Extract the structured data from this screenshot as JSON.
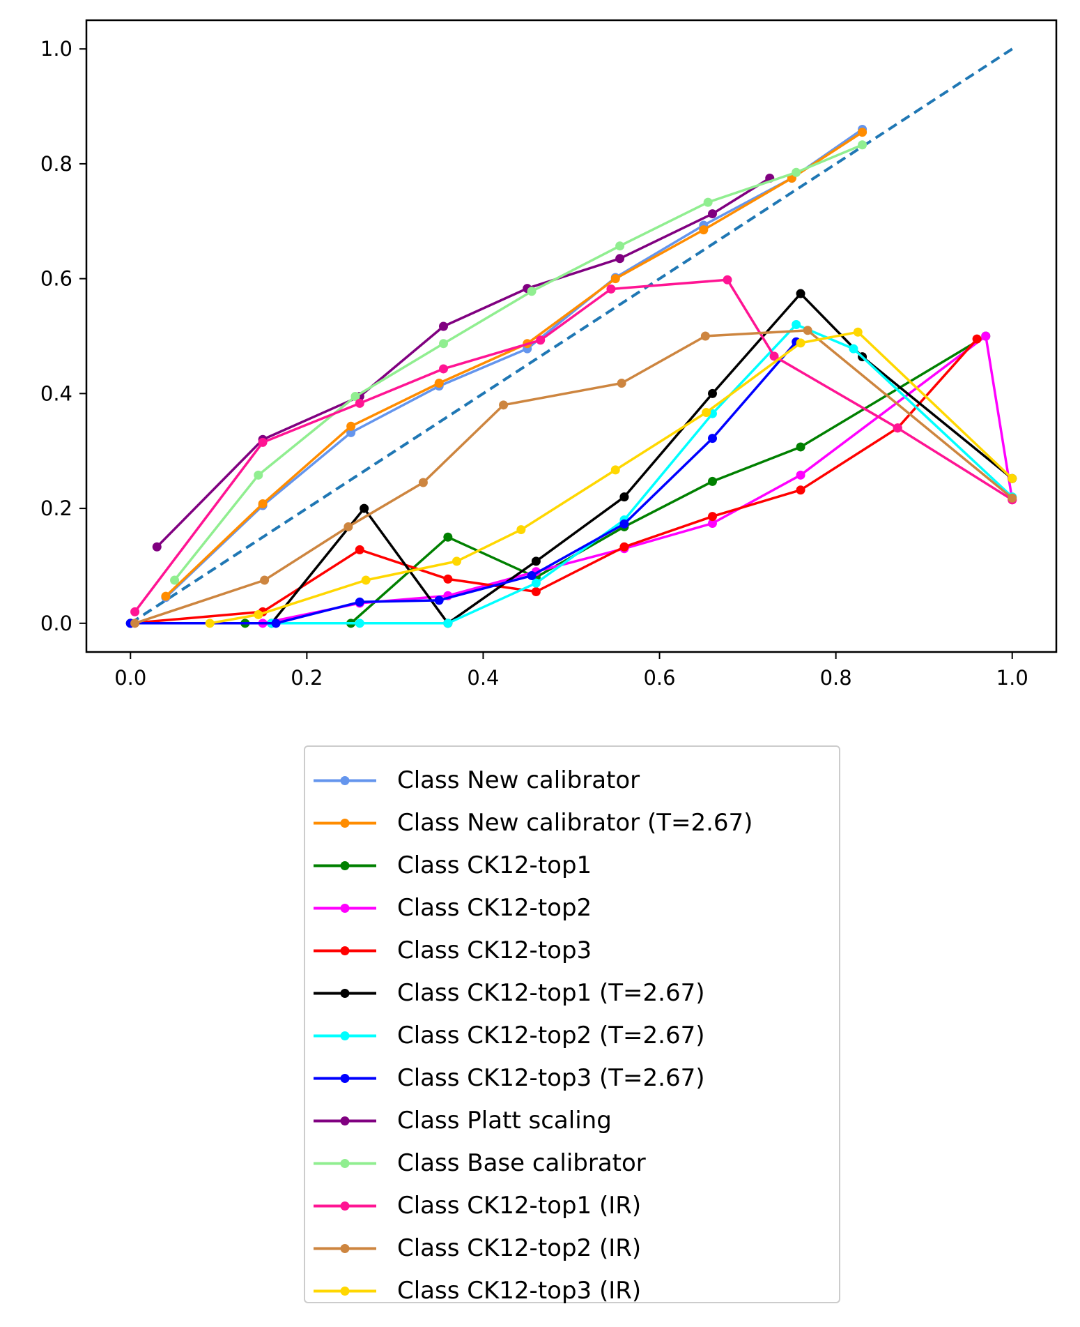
{
  "chart_data": {
    "type": "line",
    "title": "",
    "xlabel": "",
    "ylabel": "",
    "xlim": [
      -0.05,
      1.05
    ],
    "ylim": [
      -0.05,
      1.05
    ],
    "xticks": [
      "0.0",
      "0.2",
      "0.4",
      "0.6",
      "0.8",
      "1.0"
    ],
    "yticks": [
      "0.0",
      "0.2",
      "0.4",
      "0.6",
      "0.8",
      "1.0"
    ],
    "grid": false,
    "legend_position": "below",
    "reference_line": {
      "x": [
        0,
        1
      ],
      "y": [
        0,
        1
      ],
      "style": "dashed",
      "color": "#1f77b4"
    },
    "series": [
      {
        "name": "Class New calibrator",
        "color": "#6495ed",
        "x": [
          0.04,
          0.15,
          0.25,
          0.35,
          0.45,
          0.55,
          0.65,
          0.75,
          0.83
        ],
        "y": [
          0.045,
          0.205,
          0.332,
          0.413,
          0.478,
          0.602,
          0.693,
          0.775,
          0.86
        ]
      },
      {
        "name": "Class New calibrator (T=2.67)",
        "color": "#ff8c00",
        "x": [
          0.04,
          0.15,
          0.25,
          0.35,
          0.45,
          0.55,
          0.65,
          0.75,
          0.83
        ],
        "y": [
          0.047,
          0.208,
          0.343,
          0.418,
          0.487,
          0.6,
          0.685,
          0.775,
          0.855
        ]
      },
      {
        "name": "Class CK12-top1",
        "color": "#008000",
        "x": [
          0.13,
          0.25,
          0.36,
          0.46,
          0.56,
          0.66,
          0.76,
          0.97
        ],
        "y": [
          0.0,
          0.0,
          0.15,
          0.08,
          0.168,
          0.247,
          0.307,
          0.5
        ]
      },
      {
        "name": "Class CK12-top2",
        "color": "#ff00ff",
        "x": [
          0.0,
          0.15,
          0.26,
          0.36,
          0.46,
          0.56,
          0.66,
          0.76,
          0.97,
          1.0
        ],
        "y": [
          0.0,
          0.0,
          0.035,
          0.048,
          0.09,
          0.13,
          0.174,
          0.258,
          0.5,
          0.215
        ]
      },
      {
        "name": "Class CK12-top3",
        "color": "#ff0000",
        "x": [
          0.0,
          0.15,
          0.26,
          0.36,
          0.46,
          0.56,
          0.66,
          0.76,
          0.87,
          0.96
        ],
        "y": [
          0.0,
          0.02,
          0.128,
          0.077,
          0.055,
          0.133,
          0.186,
          0.232,
          0.34,
          0.495
        ]
      },
      {
        "name": "Class CK12-top1 (T=2.67)",
        "color": "#000000",
        "x": [
          0.0,
          0.16,
          0.265,
          0.36,
          0.46,
          0.56,
          0.66,
          0.76,
          0.83,
          1.0
        ],
        "y": [
          0.0,
          0.0,
          0.2,
          0.0,
          0.108,
          0.22,
          0.4,
          0.574,
          0.464,
          0.252
        ]
      },
      {
        "name": "Class CK12-top2 (T=2.67)",
        "color": "#00ffff",
        "x": [
          0.0,
          0.16,
          0.26,
          0.36,
          0.46,
          0.56,
          0.66,
          0.755,
          0.82,
          1.0
        ],
        "y": [
          0.0,
          0.0,
          0.0,
          0.0,
          0.07,
          0.18,
          0.365,
          0.52,
          0.478,
          0.22
        ]
      },
      {
        "name": "Class CK12-top3 (T=2.67)",
        "color": "#0000ff",
        "x": [
          0.0,
          0.165,
          0.26,
          0.35,
          0.455,
          0.56,
          0.66,
          0.755
        ],
        "y": [
          0.0,
          0.0,
          0.037,
          0.04,
          0.083,
          0.173,
          0.322,
          0.49
        ]
      },
      {
        "name": "Class Platt scaling",
        "color": "#800080",
        "x": [
          0.03,
          0.15,
          0.26,
          0.355,
          0.45,
          0.555,
          0.66,
          0.725
        ],
        "y": [
          0.133,
          0.32,
          0.395,
          0.517,
          0.583,
          0.635,
          0.713,
          0.775
        ]
      },
      {
        "name": "Class Base calibrator",
        "color": "#90ee90",
        "x": [
          0.05,
          0.145,
          0.255,
          0.355,
          0.455,
          0.555,
          0.655,
          0.755,
          0.83
        ],
        "y": [
          0.075,
          0.258,
          0.395,
          0.487,
          0.578,
          0.657,
          0.733,
          0.785,
          0.833
        ]
      },
      {
        "name": "Class CK12-top1 (IR)",
        "color": "#ff1493",
        "x": [
          0.005,
          0.15,
          0.26,
          0.355,
          0.465,
          0.545,
          0.677,
          0.73,
          0.87,
          1.0
        ],
        "y": [
          0.02,
          0.315,
          0.383,
          0.443,
          0.493,
          0.582,
          0.598,
          0.465,
          0.34,
          0.215
        ]
      },
      {
        "name": "Class CK12-top2 (IR)",
        "color": "#cd853f",
        "x": [
          0.005,
          0.152,
          0.247,
          0.332,
          0.423,
          0.557,
          0.652,
          0.768,
          1.0
        ],
        "y": [
          0.0,
          0.075,
          0.168,
          0.245,
          0.38,
          0.418,
          0.5,
          0.51,
          0.218
        ]
      },
      {
        "name": "Class CK12-top3 (IR)",
        "color": "#ffd700",
        "x": [
          0.09,
          0.145,
          0.267,
          0.37,
          0.443,
          0.55,
          0.653,
          0.76,
          0.825,
          1.0
        ],
        "y": [
          0.0,
          0.015,
          0.075,
          0.108,
          0.163,
          0.267,
          0.367,
          0.488,
          0.507,
          0.252
        ]
      }
    ]
  }
}
